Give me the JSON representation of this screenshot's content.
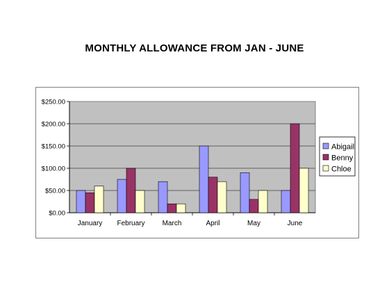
{
  "chart_data": {
    "type": "bar",
    "title": "MONTHLY ALLOWANCE FROM JAN - JUNE",
    "xlabel": "",
    "ylabel": "",
    "categories": [
      "January",
      "February",
      "March",
      "April",
      "May",
      "June"
    ],
    "series": [
      {
        "name": "Abigail",
        "values": [
          50,
          75,
          70,
          150,
          90,
          50
        ],
        "color": "#9999ff"
      },
      {
        "name": "Benny",
        "values": [
          45,
          100,
          20,
          80,
          30,
          200
        ],
        "color": "#993366"
      },
      {
        "name": "Chloe",
        "values": [
          60,
          50,
          20,
          70,
          50,
          100
        ],
        "color": "#ffffcc"
      }
    ],
    "ylim": [
      0,
      250
    ],
    "yticks": [
      0,
      50,
      100,
      150,
      200,
      250
    ],
    "ytick_labels": [
      "$0.00",
      "$50.00",
      "$100.00",
      "$150.00",
      "$200.00",
      "$250.00"
    ],
    "grid": true,
    "plot_background": "#c0c0c0",
    "legend_position": "right"
  }
}
